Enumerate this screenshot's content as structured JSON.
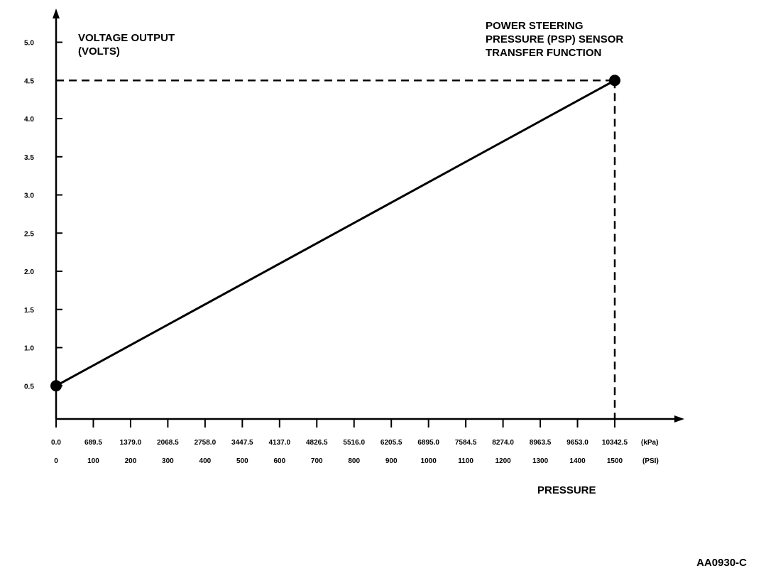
{
  "chart_data": {
    "type": "line",
    "title": [
      "POWER STEERING",
      "PRESSURE (PSP) SENSOR",
      "TRANSFER FUNCTION"
    ],
    "ylabel": [
      "VOLTAGE OUTPUT",
      "(VOLTS)"
    ],
    "xlabel": "PRESSURE",
    "ylim": [
      0,
      5.0
    ],
    "xlim": [
      0,
      1600
    ],
    "y_ticks": [
      "0.5",
      "1.0",
      "1.5",
      "2.0",
      "2.5",
      "3.0",
      "3.5",
      "4.0",
      "4.5",
      "5.0"
    ],
    "x_ticks_kpa": [
      "0.0",
      "689.5",
      "1379.0",
      "2068.5",
      "2758.0",
      "3447.5",
      "4137.0",
      "4826.5",
      "5516.0",
      "6205.5",
      "6895.0",
      "7584.5",
      "8274.0",
      "8963.5",
      "9653.0",
      "10342.5"
    ],
    "x_ticks_psi": [
      "0",
      "100",
      "200",
      "300",
      "400",
      "500",
      "600",
      "700",
      "800",
      "900",
      "1000",
      "1100",
      "1200",
      "1300",
      "1400",
      "1500"
    ],
    "unit_kpa": "(kPa)",
    "unit_psi": "(PSI)",
    "series": [
      {
        "x": [
          0,
          1500
        ],
        "y": [
          0.5,
          4.5
        ]
      }
    ],
    "reference_lines": {
      "y": 4.5,
      "x": 1500
    },
    "grid": false
  },
  "figure_id": "AA0930-C"
}
